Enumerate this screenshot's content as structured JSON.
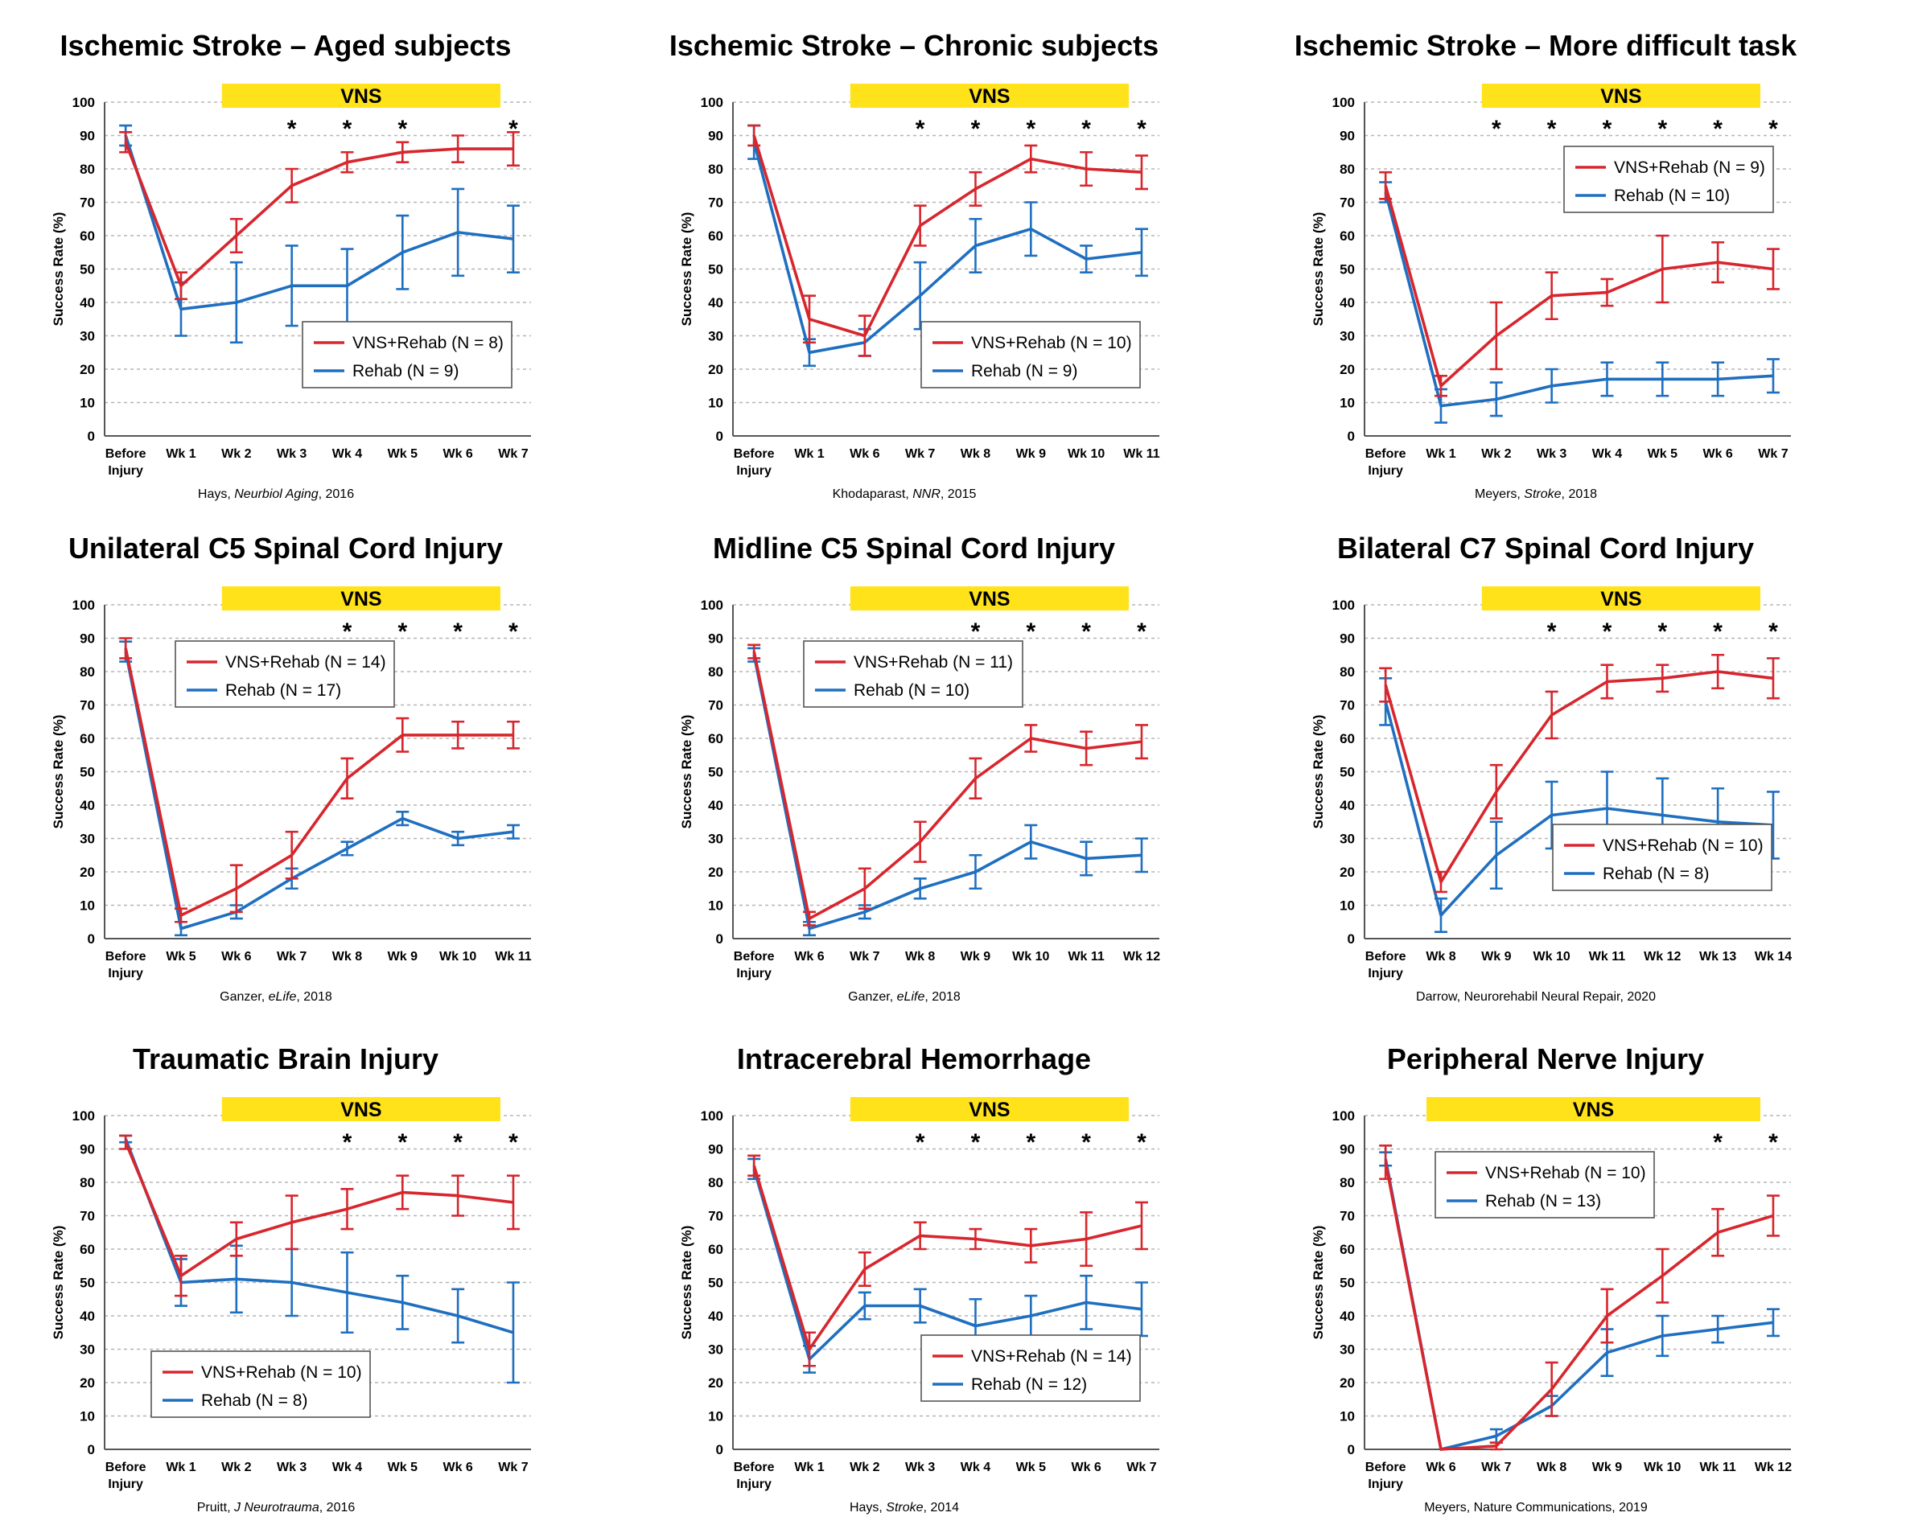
{
  "colors": {
    "vns_rehab": "#d7262d",
    "rehab": "#1f6fc0",
    "vns_bar": "#ffe21a",
    "grid": "#b5b5b5"
  },
  "ylabel": "Success Rate (%)",
  "vns_label": "VNS",
  "chart_data": [
    {
      "type": "line",
      "title": "Ischemic Stroke – Aged subjects",
      "citation": {
        "pre": "Hays, ",
        "em": "Neurbiol Aging",
        "post": ", 2016"
      },
      "ylabel": "Success Rate (%)",
      "ylim": [
        0,
        100
      ],
      "yticks": [
        0,
        10,
        20,
        30,
        40,
        50,
        60,
        70,
        80,
        90,
        100
      ],
      "categories": [
        [
          "Before",
          "Injury"
        ],
        [
          "Wk 1"
        ],
        [
          "Wk 2"
        ],
        [
          "Wk 3"
        ],
        [
          "Wk 4"
        ],
        [
          "Wk 5"
        ],
        [
          "Wk 6"
        ],
        [
          "Wk 7"
        ]
      ],
      "vns_span": [
        2,
        7
      ],
      "significant": [
        3,
        4,
        5,
        7
      ],
      "legend": "bottom-right",
      "series": [
        {
          "name": "VNS+Rehab (N = 8)",
          "color": "#d7262d",
          "values": [
            88,
            45,
            60,
            75,
            82,
            85,
            86,
            86
          ],
          "err": [
            3,
            4,
            5,
            5,
            3,
            3,
            4,
            5
          ]
        },
        {
          "name": "Rehab (N = 9)",
          "color": "#1f6fc0",
          "values": [
            90,
            38,
            40,
            45,
            45,
            55,
            61,
            59
          ],
          "err": [
            3,
            8,
            12,
            12,
            11,
            11,
            13,
            10
          ]
        }
      ]
    },
    {
      "type": "line",
      "title": "Ischemic Stroke – Chronic subjects",
      "citation": {
        "pre": "Khodaparast, ",
        "em": "NNR",
        "post": ", 2015"
      },
      "ylabel": "Success Rate (%)",
      "ylim": [
        0,
        100
      ],
      "yticks": [
        0,
        10,
        20,
        30,
        40,
        50,
        60,
        70,
        80,
        90,
        100
      ],
      "categories": [
        [
          "Before",
          "Injury"
        ],
        [
          "Wk 1"
        ],
        [
          "Wk 6"
        ],
        [
          "Wk 7"
        ],
        [
          "Wk 8"
        ],
        [
          "Wk 9"
        ],
        [
          "Wk 10"
        ],
        [
          "Wk 11"
        ]
      ],
      "vns_span": [
        2,
        7
      ],
      "significant": [
        3,
        4,
        5,
        6,
        7
      ],
      "legend": "bottom-right",
      "series": [
        {
          "name": "VNS+Rehab (N = 10)",
          "color": "#d7262d",
          "values": [
            90,
            35,
            30,
            63,
            74,
            83,
            80,
            79
          ],
          "err": [
            3,
            7,
            6,
            6,
            5,
            4,
            5,
            5
          ]
        },
        {
          "name": "Rehab (N = 9)",
          "color": "#1f6fc0",
          "values": [
            88,
            25,
            28,
            42,
            57,
            62,
            53,
            55
          ],
          "err": [
            5,
            4,
            4,
            10,
            8,
            8,
            4,
            7
          ]
        }
      ]
    },
    {
      "type": "line",
      "title": "Ischemic Stroke – More difficult task",
      "citation": {
        "pre": "Meyers, ",
        "em": "Stroke",
        "post": ", 2018"
      },
      "ylabel": "Success Rate (%)",
      "ylim": [
        0,
        100
      ],
      "yticks": [
        0,
        10,
        20,
        30,
        40,
        50,
        60,
        70,
        80,
        90,
        100
      ],
      "categories": [
        [
          "Before",
          "Injury"
        ],
        [
          "Wk 1"
        ],
        [
          "Wk 2"
        ],
        [
          "Wk 3"
        ],
        [
          "Wk 4"
        ],
        [
          "Wk 5"
        ],
        [
          "Wk 6"
        ],
        [
          "Wk 7"
        ]
      ],
      "vns_span": [
        2,
        7
      ],
      "significant": [
        2,
        3,
        4,
        5,
        6,
        7
      ],
      "legend": "top-right",
      "series": [
        {
          "name": "VNS+Rehab (N = 9)",
          "color": "#d7262d",
          "values": [
            75,
            15,
            30,
            42,
            43,
            50,
            52,
            50
          ],
          "err": [
            4,
            3,
            10,
            7,
            4,
            10,
            6,
            6
          ]
        },
        {
          "name": "Rehab (N = 10)",
          "color": "#1f6fc0",
          "values": [
            73,
            9,
            11,
            15,
            17,
            17,
            17,
            18
          ],
          "err": [
            3,
            5,
            5,
            5,
            5,
            5,
            5,
            5
          ]
        }
      ]
    },
    {
      "type": "line",
      "title": "Unilateral C5 Spinal Cord Injury",
      "citation": {
        "pre": "Ganzer, ",
        "em": "eLife",
        "post": ", 2018"
      },
      "ylabel": "Success Rate (%)",
      "ylim": [
        0,
        100
      ],
      "yticks": [
        0,
        10,
        20,
        30,
        40,
        50,
        60,
        70,
        80,
        90,
        100
      ],
      "categories": [
        [
          "Before",
          "Injury"
        ],
        [
          "Wk 5"
        ],
        [
          "Wk 6"
        ],
        [
          "Wk 7"
        ],
        [
          "Wk 8"
        ],
        [
          "Wk 9"
        ],
        [
          "Wk 10"
        ],
        [
          "Wk 11"
        ]
      ],
      "vns_span": [
        2,
        7
      ],
      "significant": [
        4,
        5,
        6,
        7
      ],
      "legend": "top-left",
      "series": [
        {
          "name": "VNS+Rehab (N = 14)",
          "color": "#d7262d",
          "values": [
            87,
            7,
            15,
            25,
            48,
            61,
            61,
            61
          ],
          "err": [
            3,
            2,
            7,
            7,
            6,
            5,
            4,
            4
          ]
        },
        {
          "name": "Rehab (N = 17)",
          "color": "#1f6fc0",
          "values": [
            86,
            3,
            8,
            18,
            27,
            36,
            30,
            32
          ],
          "err": [
            3,
            2,
            2,
            3,
            2,
            2,
            2,
            2
          ]
        }
      ]
    },
    {
      "type": "line",
      "title": "Midline C5 Spinal Cord Injury",
      "citation": {
        "pre": "Ganzer, ",
        "em": "eLife",
        "post": ", 2018"
      },
      "ylabel": "Success Rate (%)",
      "ylim": [
        0,
        100
      ],
      "yticks": [
        0,
        10,
        20,
        30,
        40,
        50,
        60,
        70,
        80,
        90,
        100
      ],
      "categories": [
        [
          "Before",
          "Injury"
        ],
        [
          "Wk 6"
        ],
        [
          "Wk 7"
        ],
        [
          "Wk 8"
        ],
        [
          "Wk 9"
        ],
        [
          "Wk 10"
        ],
        [
          "Wk 11"
        ],
        [
          "Wk 12"
        ]
      ],
      "vns_span": [
        2,
        7
      ],
      "significant": [
        4,
        5,
        6,
        7
      ],
      "legend": "top-left",
      "series": [
        {
          "name": "VNS+Rehab (N = 11)",
          "color": "#d7262d",
          "values": [
            86,
            6,
            15,
            29,
            48,
            60,
            57,
            59
          ],
          "err": [
            2,
            2,
            6,
            6,
            6,
            4,
            5,
            5
          ]
        },
        {
          "name": "Rehab (N = 10)",
          "color": "#1f6fc0",
          "values": [
            85,
            3,
            8,
            15,
            20,
            29,
            24,
            25
          ],
          "err": [
            2,
            2,
            2,
            3,
            5,
            5,
            5,
            5
          ]
        }
      ]
    },
    {
      "type": "line",
      "title": "Bilateral C7 Spinal Cord Injury",
      "citation": {
        "pre": "Darrow, Neurorehabil Neural Repair, 2020",
        "em": "",
        "post": ""
      },
      "ylabel": "Success Rate (%)",
      "ylim": [
        0,
        100
      ],
      "yticks": [
        0,
        10,
        20,
        30,
        40,
        50,
        60,
        70,
        80,
        90,
        100
      ],
      "categories": [
        [
          "Before",
          "Injury"
        ],
        [
          "Wk 8"
        ],
        [
          "Wk 9"
        ],
        [
          "Wk 10"
        ],
        [
          "Wk 11"
        ],
        [
          "Wk 12"
        ],
        [
          "Wk 13"
        ],
        [
          "Wk 14"
        ]
      ],
      "vns_span": [
        2,
        7
      ],
      "significant": [
        3,
        4,
        5,
        6,
        7
      ],
      "legend": "bottom-right",
      "series": [
        {
          "name": "VNS+Rehab (N = 10)",
          "color": "#d7262d",
          "values": [
            76,
            17,
            44,
            67,
            77,
            78,
            80,
            78
          ],
          "err": [
            5,
            3,
            8,
            7,
            5,
            4,
            5,
            6
          ]
        },
        {
          "name": "Rehab (N = 8)",
          "color": "#1f6fc0",
          "values": [
            71,
            7,
            25,
            37,
            39,
            37,
            35,
            34
          ],
          "err": [
            7,
            5,
            10,
            10,
            11,
            11,
            10,
            10
          ]
        }
      ]
    },
    {
      "type": "line",
      "title": "Traumatic Brain Injury",
      "citation": {
        "pre": "Pruitt, ",
        "em": "J Neurotrauma",
        "post": ", 2016"
      },
      "ylabel": "Success Rate (%)",
      "ylim": [
        0,
        100
      ],
      "yticks": [
        0,
        10,
        20,
        30,
        40,
        50,
        60,
        70,
        80,
        90,
        100
      ],
      "categories": [
        [
          "Before",
          "Injury"
        ],
        [
          "Wk 1"
        ],
        [
          "Wk 2"
        ],
        [
          "Wk 3"
        ],
        [
          "Wk 4"
        ],
        [
          "Wk 5"
        ],
        [
          "Wk 6"
        ],
        [
          "Wk 7"
        ]
      ],
      "vns_span": [
        2,
        7
      ],
      "significant": [
        4,
        5,
        6,
        7
      ],
      "legend": "bottom-left",
      "series": [
        {
          "name": "VNS+Rehab (N = 10)",
          "color": "#d7262d",
          "values": [
            92,
            52,
            63,
            68,
            72,
            77,
            76,
            74
          ],
          "err": [
            2,
            6,
            5,
            8,
            6,
            5,
            6,
            8
          ]
        },
        {
          "name": "Rehab (N = 8)",
          "color": "#1f6fc0",
          "values": [
            93,
            50,
            51,
            50,
            47,
            44,
            40,
            35
          ],
          "err": [
            1,
            7,
            10,
            10,
            12,
            8,
            8,
            15
          ]
        }
      ]
    },
    {
      "type": "line",
      "title": "Intracerebral Hemorrhage",
      "citation": {
        "pre": "Hays, ",
        "em": "Stroke",
        "post": ", 2014"
      },
      "ylabel": "Success Rate (%)",
      "ylim": [
        0,
        100
      ],
      "yticks": [
        0,
        10,
        20,
        30,
        40,
        50,
        60,
        70,
        80,
        90,
        100
      ],
      "categories": [
        [
          "Before",
          "Injury"
        ],
        [
          "Wk 1"
        ],
        [
          "Wk 2"
        ],
        [
          "Wk 3"
        ],
        [
          "Wk 4"
        ],
        [
          "Wk 5"
        ],
        [
          "Wk 6"
        ],
        [
          "Wk 7"
        ]
      ],
      "vns_span": [
        2,
        7
      ],
      "significant": [
        3,
        4,
        5,
        6,
        7
      ],
      "legend": "bottom-right",
      "series": [
        {
          "name": "VNS+Rehab (N = 14)",
          "color": "#d7262d",
          "values": [
            85,
            30,
            54,
            64,
            63,
            61,
            63,
            67
          ],
          "err": [
            3,
            5,
            5,
            4,
            3,
            5,
            8,
            7
          ]
        },
        {
          "name": "Rehab (N = 12)",
          "color": "#1f6fc0",
          "values": [
            84,
            27,
            43,
            43,
            37,
            40,
            44,
            42
          ],
          "err": [
            3,
            4,
            4,
            5,
            8,
            6,
            8,
            8
          ]
        }
      ]
    },
    {
      "type": "line",
      "title": "Peripheral Nerve Injury",
      "citation": {
        "pre": "Meyers, Nature Communications, 2019",
        "em": "",
        "post": ""
      },
      "ylabel": "Success Rate (%)",
      "ylim": [
        0,
        100
      ],
      "yticks": [
        0,
        10,
        20,
        30,
        40,
        50,
        60,
        70,
        80,
        90,
        100
      ],
      "categories": [
        [
          "Before",
          "Injury"
        ],
        [
          "Wk 6"
        ],
        [
          "Wk 7"
        ],
        [
          "Wk 8"
        ],
        [
          "Wk 9"
        ],
        [
          "Wk 10"
        ],
        [
          "Wk 11"
        ],
        [
          "Wk 12"
        ]
      ],
      "vns_span": [
        1,
        7
      ],
      "significant": [
        6,
        7
      ],
      "legend": "top-left",
      "series": [
        {
          "name": "VNS+Rehab (N = 10)",
          "color": "#d7262d",
          "values": [
            86,
            0,
            1,
            18,
            40,
            52,
            65,
            70
          ],
          "err": [
            5,
            0,
            1,
            8,
            8,
            8,
            7,
            6
          ]
        },
        {
          "name": "Rehab (N = 13)",
          "color": "#1f6fc0",
          "values": [
            87,
            0,
            4,
            13,
            29,
            34,
            36,
            38
          ],
          "err": [
            2,
            0,
            2,
            3,
            7,
            6,
            4,
            4
          ]
        }
      ]
    }
  ]
}
